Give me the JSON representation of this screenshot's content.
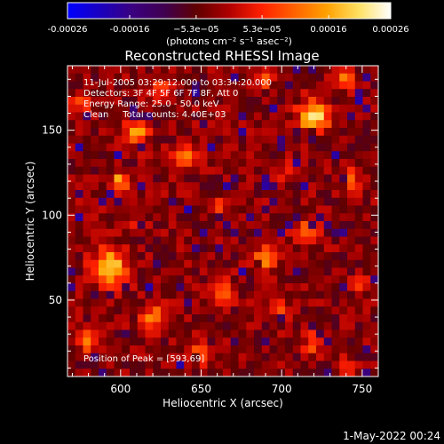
{
  "chart_data": {
    "type": "heatmap",
    "title": "Reconstructed RHESSI Image",
    "xlabel": "Heliocentric X (arcsec)",
    "ylabel": "Heliocentric Y (arcsec)",
    "xlim": [
      567,
      760
    ],
    "ylim": [
      5,
      188
    ],
    "x_ticks": [
      600,
      650,
      700,
      750
    ],
    "y_ticks": [
      50,
      100,
      150
    ],
    "colorbar": {
      "label": "(photons cm⁻² s⁻¹ asec⁻²)",
      "range": [
        -0.00026,
        0.00026
      ],
      "ticks": [
        {
          "value": -0.00026,
          "label": "-0.00026"
        },
        {
          "value": -0.00016,
          "label": "-0.00016"
        },
        {
          "value": -5.3e-05,
          "label": "−5.3e−05"
        },
        {
          "value": 5.3e-05,
          "label": "5.3e−05"
        },
        {
          "value": 0.00016,
          "label": "0.00016"
        },
        {
          "value": 0.00026,
          "label": "0.00026"
        }
      ],
      "colors": [
        "#0000ff",
        "#1a00c0",
        "#3a0080",
        "#400050",
        "#600000",
        "#b00000",
        "#ff2000",
        "#ff6000",
        "#ffa000",
        "#ffe060",
        "#ffffff"
      ]
    },
    "info_lines": [
      "11-Jul-2005 03:29:12.000 to 03:34:20.000",
      "Detectors: 3F 4F 5F 6F 7F 8F, Att 0",
      "Energy Range: 25.0 - 50.0 keV",
      "Clean     Total counts: 4.40E+03"
    ],
    "peak_label": "Position of Peak = [593,69]",
    "peak": {
      "x": 593,
      "y": 69
    },
    "grid": false,
    "blobs": [
      {
        "x": 593,
        "y": 69,
        "amp": 0.00026,
        "r": 10
      },
      {
        "x": 720,
        "y": 158,
        "amp": 0.00025,
        "r": 9
      },
      {
        "x": 610,
        "y": 148,
        "amp": 0.00018,
        "r": 7
      },
      {
        "x": 640,
        "y": 135,
        "amp": 0.00016,
        "r": 7
      },
      {
        "x": 600,
        "y": 120,
        "amp": 0.00018,
        "r": 6
      },
      {
        "x": 625,
        "y": 175,
        "amp": 0.00015,
        "r": 6
      },
      {
        "x": 690,
        "y": 75,
        "amp": 0.00016,
        "r": 7
      },
      {
        "x": 715,
        "y": 90,
        "amp": 0.00015,
        "r": 7
      },
      {
        "x": 740,
        "y": 180,
        "amp": 0.00015,
        "r": 6
      },
      {
        "x": 690,
        "y": 180,
        "amp": 0.00012,
        "r": 5
      },
      {
        "x": 745,
        "y": 120,
        "amp": 0.00016,
        "r": 6
      },
      {
        "x": 620,
        "y": 40,
        "amp": 0.00015,
        "r": 7
      },
      {
        "x": 650,
        "y": 20,
        "amp": 0.00015,
        "r": 7
      },
      {
        "x": 580,
        "y": 25,
        "amp": 0.00016,
        "r": 6
      },
      {
        "x": 720,
        "y": 25,
        "amp": 0.00013,
        "r": 6
      },
      {
        "x": 750,
        "y": 60,
        "amp": 0.00014,
        "r": 5
      },
      {
        "x": 665,
        "y": 55,
        "amp": 0.00014,
        "r": 6
      },
      {
        "x": 700,
        "y": 125,
        "amp": 0.00012,
        "r": 6
      },
      {
        "x": 660,
        "y": 105,
        "amp": 0.0001,
        "r": 5
      },
      {
        "x": 575,
        "y": 165,
        "amp": 0.00012,
        "r": 5
      },
      {
        "x": 740,
        "y": 10,
        "amp": 0.00012,
        "r": 5
      },
      {
        "x": 610,
        "y": 95,
        "amp": 0.0001,
        "r": 5
      },
      {
        "x": 700,
        "y": 45,
        "amp": 0.00011,
        "r": 5
      }
    ]
  },
  "footer_timestamp": "1-May-2022 00:24"
}
